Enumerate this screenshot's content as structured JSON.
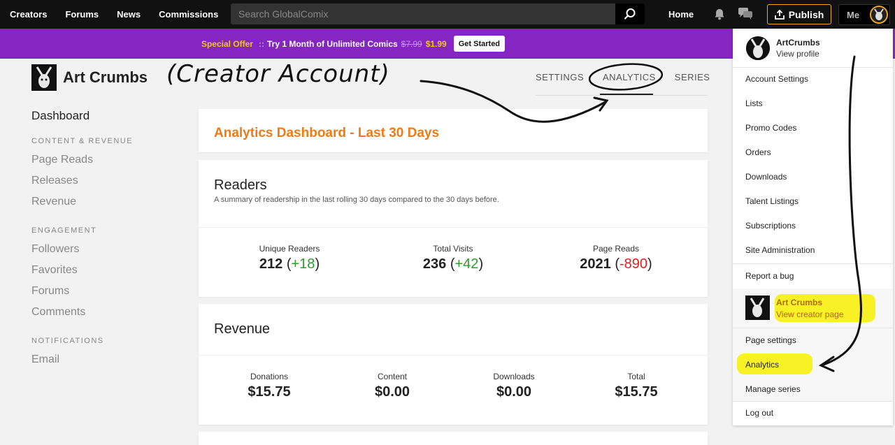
{
  "nav": {
    "links": [
      "Creators",
      "Forums",
      "News",
      "Commissions"
    ],
    "search_placeholder": "Search GlobalComix",
    "home": "Home",
    "publish": "Publish",
    "me": "Me"
  },
  "promo": {
    "offer": "Special Offer",
    "sep": "::",
    "text": "Try 1 Month of Unlimited Comics",
    "old_price": "$7.99",
    "new_price": "$1.99",
    "cta": "Get Started"
  },
  "header": {
    "brand": "Art Crumbs",
    "annotation": "(Creator Account)",
    "tabs": [
      "SETTINGS",
      "ANALYTICS",
      "SERIES"
    ]
  },
  "sidebar": {
    "dashboard": "Dashboard",
    "sections": [
      {
        "title": "CONTENT & REVENUE",
        "items": [
          "Page Reads",
          "Releases",
          "Revenue"
        ]
      },
      {
        "title": "ENGAGEMENT",
        "items": [
          "Followers",
          "Favorites",
          "Forums",
          "Comments"
        ]
      },
      {
        "title": "NOTIFICATIONS",
        "items": [
          "Email"
        ]
      }
    ]
  },
  "main": {
    "title": "Analytics Dashboard - Last 30 Days",
    "readers": {
      "heading": "Readers",
      "desc": "A summary of readership in the last rolling 30 days compared to the 30 days before.",
      "stats": [
        {
          "label": "Unique Readers",
          "value": "212",
          "delta": "+18",
          "sign": "pos"
        },
        {
          "label": "Total Visits",
          "value": "236",
          "delta": "+42",
          "sign": "pos"
        },
        {
          "label": "Page Reads",
          "value": "2021",
          "delta": "-890",
          "sign": "neg"
        }
      ]
    },
    "revenue": {
      "heading": "Revenue",
      "stats": [
        {
          "label": "Donations",
          "value": "$15.75"
        },
        {
          "label": "Content",
          "value": "$0.00"
        },
        {
          "label": "Downloads",
          "value": "$0.00"
        },
        {
          "label": "Total",
          "value": "$15.75"
        }
      ]
    }
  },
  "dropdown": {
    "profile_name": "ArtCrumbs",
    "profile_link": "View profile",
    "items": [
      "Account Settings",
      "Lists",
      "Promo Codes",
      "Orders",
      "Downloads",
      "Talent Listings",
      "Subscriptions",
      "Site Administration",
      "Report a bug"
    ],
    "creator_name": "Art Crumbs",
    "creator_link": "View creator page",
    "creator_items": [
      "Page settings",
      "Analytics",
      "Manage series"
    ],
    "logout": "Log out"
  },
  "colors": {
    "accent_orange": "#f07a14",
    "promo_purple": "#8526c3",
    "highlight": "#f7f000",
    "positive": "#2aa02a",
    "negative": "#e02020"
  }
}
